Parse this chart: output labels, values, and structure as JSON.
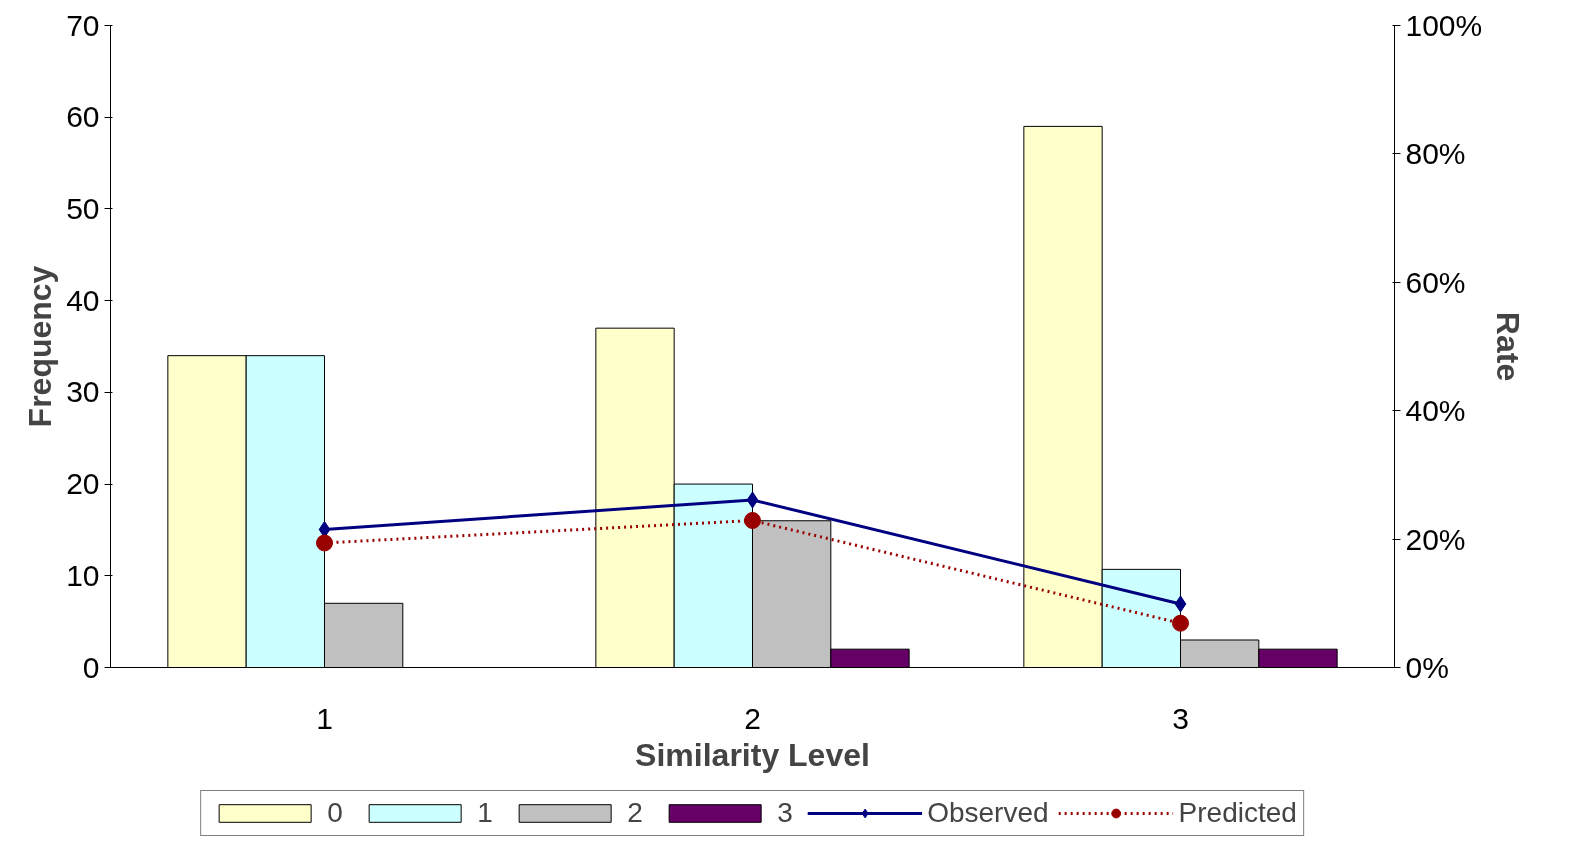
{
  "chart_data": {
    "type": "bar",
    "xlabel": "Similarity Level",
    "ylabel": "Frequency",
    "y2label": "Rate",
    "categories": [
      "1",
      "2",
      "3"
    ],
    "series": [
      {
        "name": "0",
        "color": "#ffffcc",
        "values": [
          34,
          37,
          59
        ]
      },
      {
        "name": "1",
        "color": "#ccffff",
        "values": [
          34,
          20,
          10.7
        ]
      },
      {
        "name": "2",
        "color": "#c0c0c0",
        "values": [
          7,
          16,
          3
        ]
      },
      {
        "name": "3",
        "color": "#660066",
        "values": [
          null,
          2,
          2
        ]
      },
      {
        "name": "Observed",
        "type": "line",
        "axis": "y2",
        "color": "#000080",
        "marker": "diamond",
        "line_style": "solid",
        "values": [
          21.5,
          26.1,
          9.9
        ]
      },
      {
        "name": "Predicted",
        "type": "line",
        "axis": "y2",
        "color": "#990000",
        "marker": "circle",
        "line_style": "dotted",
        "values": [
          19.4,
          22.9,
          6.9
        ]
      }
    ],
    "ylim": [
      0,
      70
    ],
    "yticks": [
      0,
      10,
      20,
      30,
      40,
      50,
      60,
      70
    ],
    "y2lim": [
      0,
      100
    ],
    "y2ticks": [
      {
        "value": 0,
        "label": "0%"
      },
      {
        "value": 20,
        "label": "20%"
      },
      {
        "value": 40,
        "label": "40%"
      },
      {
        "value": 60,
        "label": "60%"
      },
      {
        "value": 80,
        "label": "80%"
      },
      {
        "value": 100,
        "label": "100%"
      }
    ],
    "grid": false,
    "legend": "bottom"
  }
}
